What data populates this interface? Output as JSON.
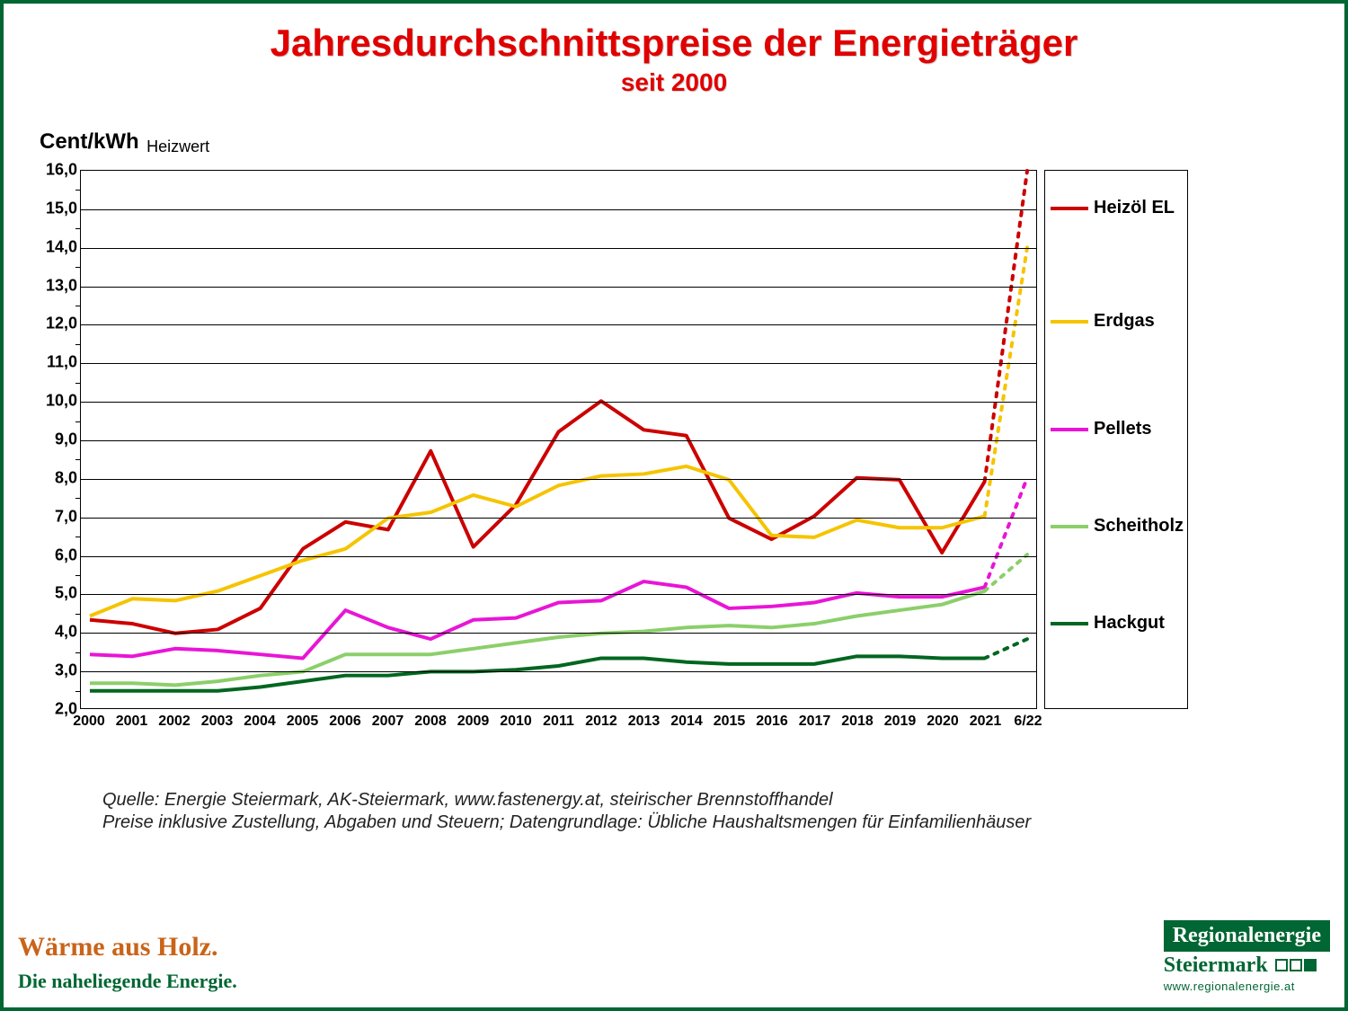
{
  "title": "Jahresdurchschnittspreise der Energieträger",
  "subtitle": "seit 2000",
  "y_axis": {
    "label_main": "Cent/kWh",
    "label_sub": "Heizwert",
    "min": 2.0,
    "max": 16.0,
    "tick_step": 1.0
  },
  "x_axis": {
    "labels": [
      "2000",
      "2001",
      "2002",
      "2003",
      "2004",
      "2005",
      "2006",
      "2007",
      "2008",
      "2009",
      "2010",
      "2011",
      "2012",
      "2013",
      "2014",
      "2015",
      "2016",
      "2017",
      "2018",
      "2019",
      "2020",
      "2021",
      "6/22"
    ]
  },
  "series": [
    {
      "name": "Heizöl EL",
      "color": "#cc0000",
      "width": 4,
      "values": [
        4.3,
        4.2,
        3.95,
        4.05,
        4.6,
        6.15,
        6.85,
        6.65,
        8.7,
        6.2,
        7.3,
        9.2,
        10.0,
        9.25,
        9.1,
        6.95,
        6.4,
        7.0,
        8.0,
        7.95,
        6.05,
        7.9,
        16.0
      ],
      "solid_until": 21
    },
    {
      "name": "Erdgas",
      "color": "#f5c400",
      "width": 4,
      "values": [
        4.4,
        4.85,
        4.8,
        5.05,
        5.45,
        5.85,
        6.15,
        6.95,
        7.1,
        7.55,
        7.25,
        7.8,
        8.05,
        8.1,
        8.3,
        7.95,
        6.5,
        6.45,
        6.9,
        6.7,
        6.7,
        7.0,
        14.0
      ],
      "solid_until": 21
    },
    {
      "name": "Pellets",
      "color": "#e815d6",
      "width": 4,
      "values": [
        3.4,
        3.35,
        3.55,
        3.5,
        3.4,
        3.3,
        4.55,
        4.1,
        3.8,
        4.3,
        4.35,
        4.75,
        4.8,
        5.3,
        5.15,
        4.6,
        4.65,
        4.75,
        5.0,
        4.9,
        4.9,
        5.15,
        8.0
      ],
      "solid_until": 21
    },
    {
      "name": "Scheitholz",
      "color": "#8bcf6a",
      "width": 4,
      "values": [
        2.65,
        2.65,
        2.6,
        2.7,
        2.85,
        2.95,
        3.4,
        3.4,
        3.4,
        3.55,
        3.7,
        3.85,
        3.95,
        4.0,
        4.1,
        4.15,
        4.1,
        4.2,
        4.4,
        4.55,
        4.7,
        5.05,
        6.0
      ],
      "solid_until": 21
    },
    {
      "name": "Hackgut",
      "color": "#006620",
      "width": 4,
      "values": [
        2.45,
        2.45,
        2.45,
        2.45,
        2.55,
        2.7,
        2.85,
        2.85,
        2.95,
        2.95,
        3.0,
        3.1,
        3.3,
        3.3,
        3.2,
        3.15,
        3.15,
        3.15,
        3.35,
        3.35,
        3.3,
        3.3,
        3.8
      ],
      "solid_until": 21
    }
  ],
  "legend_positions_pct": [
    7,
    28,
    48,
    66,
    84
  ],
  "footnotes": [
    "Quelle: Energie Steiermark, AK-Steiermark, www.fastenergy.at, steirischer Brennstoffhandel",
    "Preise inklusive Zustellung, Abgaben und Steuern; Datengrundlage: Übliche Haushaltsmengen für Einfamilienhäuser"
  ],
  "brand_left": {
    "line1": "Wärme aus Holz.",
    "line2": "Die naheliegende Energie."
  },
  "brand_right": {
    "line1": "Regionalenergie",
    "line2": "Steiermark",
    "url": "www.regionalenergie.at"
  },
  "colors": {
    "frame": "#006633",
    "title": "#e00000",
    "grid": "#000000",
    "background": "#ffffff"
  }
}
